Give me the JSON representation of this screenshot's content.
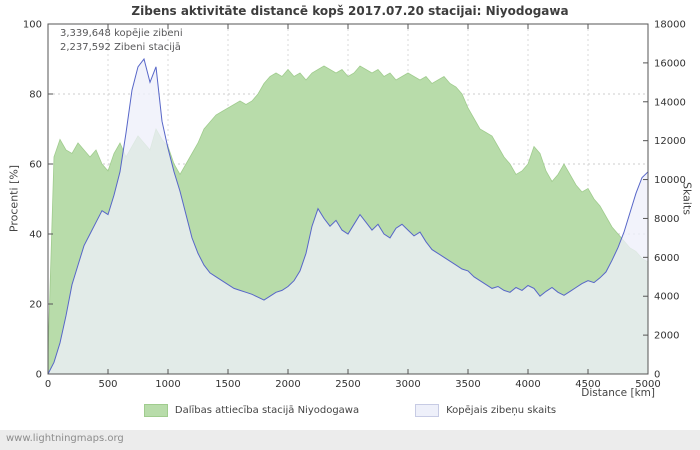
{
  "title": "Zibens aktivitāte distancē kopš 2017.07.20 stacijai: Niyodogawa",
  "annotations": {
    "total": "3,339,648 kopējie zibeni",
    "station": "2,237,592 Zibeni stacijā"
  },
  "watermark": "www.lightningmaps.org",
  "legend": [
    {
      "label": "Dalības attiecība stacijā Niyodogawa",
      "color": "#b8dcaa",
      "border": "#a0cc8e"
    },
    {
      "label": "Kopējais zibeņu skaits",
      "color": "#eef0fa",
      "border": "#c7cbe4"
    }
  ],
  "chart_data": {
    "type": "area",
    "title": "Zibens aktivitāte distancē kopš 2017.07.20 stacijai: Niyodogawa",
    "xlabel": "Distance  [km]",
    "ylabel_left": "Procenti  [%]",
    "ylabel_right": "Skaits",
    "xlim": [
      0,
      5000
    ],
    "ylim_left": [
      0,
      100
    ],
    "ylim_right": [
      0,
      18000
    ],
    "x_ticks": [
      0,
      500,
      1000,
      1500,
      2000,
      2500,
      3000,
      3500,
      4000,
      4500,
      5000
    ],
    "left_ticks": [
      0,
      20,
      40,
      60,
      80,
      100
    ],
    "right_ticks": [
      0,
      2000,
      4000,
      6000,
      8000,
      10000,
      12000,
      14000,
      16000,
      18000
    ],
    "grid": true,
    "legend_position": "bottom",
    "x": [
      0,
      50,
      100,
      150,
      200,
      250,
      300,
      350,
      400,
      450,
      500,
      550,
      600,
      650,
      700,
      750,
      800,
      850,
      900,
      950,
      1000,
      1050,
      1100,
      1150,
      1200,
      1250,
      1300,
      1350,
      1400,
      1450,
      1500,
      1550,
      1600,
      1650,
      1700,
      1750,
      1800,
      1850,
      1900,
      1950,
      2000,
      2050,
      2100,
      2150,
      2200,
      2250,
      2300,
      2350,
      2400,
      2450,
      2500,
      2550,
      2600,
      2650,
      2700,
      2750,
      2800,
      2850,
      2900,
      2950,
      3000,
      3050,
      3100,
      3150,
      3200,
      3250,
      3300,
      3350,
      3400,
      3450,
      3500,
      3550,
      3600,
      3650,
      3700,
      3750,
      3800,
      3850,
      3900,
      3950,
      4000,
      4050,
      4100,
      4150,
      4200,
      4250,
      4300,
      4350,
      4400,
      4450,
      4500,
      4550,
      4600,
      4650,
      4700,
      4750,
      4800,
      4850,
      4900,
      4950,
      5000
    ],
    "series": [
      {
        "name": "Dalības attiecība stacijā Niyodogawa",
        "axis": "left",
        "unit": "%",
        "fill": "#b8dcaa",
        "stroke": "#a0cc8e",
        "values": [
          5,
          62,
          67,
          64,
          63,
          66,
          64,
          62,
          64,
          60,
          58,
          63,
          66,
          62,
          65,
          68,
          66,
          64,
          70,
          67,
          65,
          60,
          57,
          60,
          63,
          66,
          70,
          72,
          74,
          75,
          76,
          77,
          78,
          77,
          78,
          80,
          83,
          85,
          86,
          85,
          87,
          85,
          86,
          84,
          86,
          87,
          88,
          87,
          86,
          87,
          85,
          86,
          88,
          87,
          86,
          87,
          85,
          86,
          84,
          85,
          86,
          85,
          84,
          85,
          83,
          84,
          85,
          83,
          82,
          80,
          76,
          73,
          70,
          69,
          68,
          65,
          62,
          60,
          57,
          58,
          60,
          65,
          63,
          58,
          55,
          57,
          60,
          57,
          54,
          52,
          53,
          50,
          48,
          45,
          42,
          40,
          38,
          36,
          35,
          33,
          32
        ]
      },
      {
        "name": "Kopējais zibeņu skaits",
        "axis": "right",
        "unit": "count",
        "fill": "#eef0fa",
        "stroke": "#5766c8",
        "values": [
          0,
          600,
          1600,
          3000,
          4600,
          5600,
          6600,
          7200,
          7800,
          8400,
          8200,
          9200,
          10400,
          12400,
          14600,
          15800,
          16200,
          15000,
          15800,
          13000,
          11600,
          10400,
          9400,
          8200,
          7000,
          6200,
          5600,
          5200,
          5000,
          4800,
          4600,
          4400,
          4300,
          4200,
          4100,
          3950,
          3800,
          4000,
          4200,
          4300,
          4500,
          4800,
          5300,
          6200,
          7600,
          8500,
          8000,
          7600,
          7900,
          7400,
          7200,
          7700,
          8200,
          7800,
          7400,
          7700,
          7200,
          7000,
          7500,
          7700,
          7400,
          7100,
          7300,
          6800,
          6400,
          6200,
          6000,
          5800,
          5600,
          5400,
          5300,
          5000,
          4800,
          4600,
          4400,
          4500,
          4300,
          4200,
          4450,
          4300,
          4550,
          4400,
          4000,
          4250,
          4450,
          4200,
          4050,
          4250,
          4450,
          4650,
          4800,
          4700,
          4950,
          5250,
          5850,
          6500,
          7300,
          8300,
          9300,
          10100,
          10400
        ]
      }
    ]
  }
}
